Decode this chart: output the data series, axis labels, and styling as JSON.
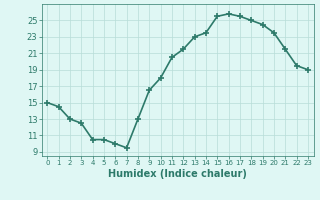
{
  "x": [
    0,
    1,
    2,
    3,
    4,
    5,
    6,
    7,
    8,
    9,
    10,
    11,
    12,
    13,
    14,
    15,
    16,
    17,
    18,
    19,
    20,
    21,
    22,
    23
  ],
  "y": [
    15.0,
    14.5,
    13.0,
    12.5,
    10.5,
    10.5,
    10.0,
    9.5,
    13.0,
    16.5,
    18.0,
    20.5,
    21.5,
    23.0,
    23.5,
    25.5,
    25.8,
    25.5,
    25.0,
    24.5,
    23.5,
    21.5,
    19.5,
    19.0
  ],
  "xlabel": "Humidex (Indice chaleur)",
  "xlim": [
    -0.5,
    23.5
  ],
  "ylim": [
    8.5,
    27.0
  ],
  "yticks": [
    9,
    11,
    13,
    15,
    17,
    19,
    21,
    23,
    25
  ],
  "xticks": [
    0,
    1,
    2,
    3,
    4,
    5,
    6,
    7,
    8,
    9,
    10,
    11,
    12,
    13,
    14,
    15,
    16,
    17,
    18,
    19,
    20,
    21,
    22,
    23
  ],
  "line_color": "#2d7a6a",
  "marker": "+",
  "bg_color": "#dff7f4",
  "grid_color": "#b8ddd8",
  "tick_color": "#2d7a6a",
  "label_color": "#2d7a6a",
  "marker_size": 5,
  "marker_edge_width": 1.2,
  "line_width": 1.2
}
